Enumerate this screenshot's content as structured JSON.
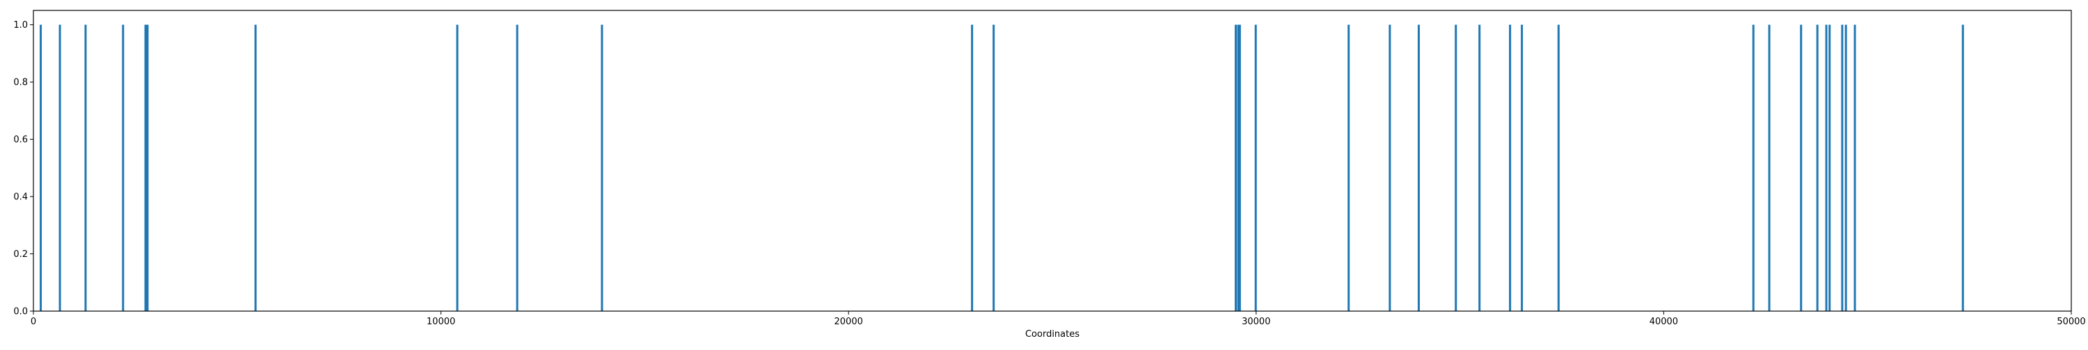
{
  "chart_data": {
    "type": "bar",
    "title": "",
    "xlabel": "Coordinates",
    "ylabel": "",
    "xlim": [
      0,
      50000
    ],
    "ylim": [
      0,
      1.05
    ],
    "grid": false,
    "legend": "none",
    "bar_color": "#1f77b4",
    "x_ticks": [
      {
        "value": 0,
        "label": "0"
      },
      {
        "value": 10000,
        "label": "10000"
      },
      {
        "value": 20000,
        "label": "20000"
      },
      {
        "value": 30000,
        "label": "30000"
      },
      {
        "value": 40000,
        "label": "40000"
      },
      {
        "value": 50000,
        "label": "50000"
      }
    ],
    "y_ticks": [
      {
        "value": 0.0,
        "label": "0.0"
      },
      {
        "value": 0.2,
        "label": "0.2"
      },
      {
        "value": 0.4,
        "label": "0.4"
      },
      {
        "value": 0.6,
        "label": "0.6"
      },
      {
        "value": 0.8,
        "label": "0.8"
      },
      {
        "value": 1.0,
        "label": "1.0"
      }
    ],
    "x": [
      180,
      650,
      1280,
      2200,
      2750,
      2800,
      5450,
      10400,
      11870,
      13950,
      23030,
      23560,
      29500,
      29560,
      29600,
      29990,
      32270,
      33280,
      33990,
      34900,
      35480,
      36230,
      36520,
      37420,
      42200,
      42590,
      43370,
      43770,
      43990,
      44070,
      44380,
      44470,
      44690,
      47340
    ],
    "values": [
      1,
      1,
      1,
      1,
      1,
      1,
      1,
      1,
      1,
      1,
      1,
      1,
      1,
      1,
      1,
      1,
      1,
      1,
      1,
      1,
      1,
      1,
      1,
      1,
      1,
      1,
      1,
      1,
      1,
      1,
      1,
      1,
      1,
      1
    ]
  }
}
